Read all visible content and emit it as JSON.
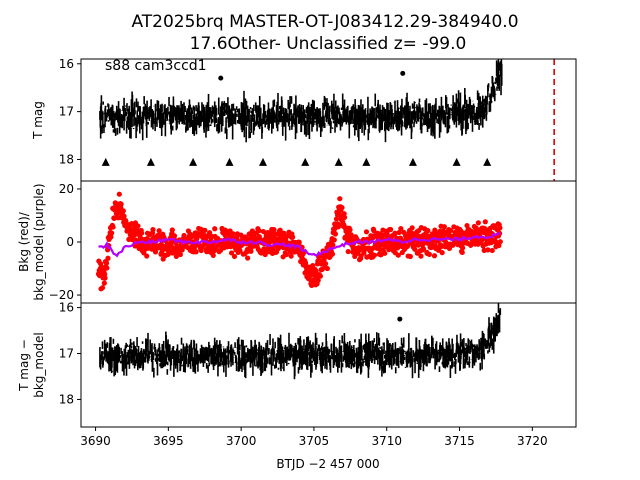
{
  "chart_data": [
    {
      "type": "scatter",
      "title": "AT2025brq  MASTER-OT-J083412.29-384940.0",
      "subtitle": "17.6Other- Unclassified z= -99.0",
      "annotation": "s88 cam3ccd1",
      "ylabel": "T mag",
      "ylim": [
        18.45,
        15.9
      ],
      "yticks": [
        16,
        17,
        18
      ],
      "inverted_y": true,
      "xlim": [
        3689,
        3723
      ],
      "marker_color": "#000000",
      "series": [
        {
          "x": [
            3690.3,
            3690.8,
            3691.3,
            3691.8,
            3692.3,
            3692.8,
            3693.3,
            3693.8,
            3694.3,
            3694.8,
            3695.3,
            3695.8,
            3696.3,
            3696.8,
            3697.3,
            3697.8,
            3698.3,
            3698.8,
            3699.3,
            3699.8,
            3700.3,
            3700.8,
            3701.3,
            3701.8,
            3702.3,
            3702.8,
            3703.3,
            3703.8,
            3704.3,
            3704.8,
            3705.3,
            3705.8,
            3706.3,
            3706.8,
            3707.3,
            3707.8,
            3708.3,
            3708.8,
            3709.3,
            3709.8,
            3710.3,
            3710.8,
            3711.3,
            3711.8,
            3712.3,
            3712.8,
            3713.3,
            3713.8,
            3714.3,
            3714.8,
            3715.3,
            3715.8,
            3716.3,
            3716.8,
            3717.1,
            3717.3,
            3717.5,
            3717.7,
            3717.9
          ],
          "y": [
            17.15,
            17.1,
            17.15,
            17.1,
            17.1,
            17.1,
            17.1,
            17.1,
            17.1,
            17.1,
            17.1,
            17.1,
            17.1,
            17.1,
            17.1,
            17.1,
            17.1,
            17.1,
            17.1,
            17.1,
            17.1,
            17.1,
            17.1,
            17.1,
            17.1,
            17.1,
            17.1,
            17.1,
            17.1,
            17.1,
            17.1,
            17.1,
            17.1,
            17.1,
            17.1,
            17.1,
            17.1,
            17.1,
            17.1,
            17.1,
            17.1,
            17.1,
            17.1,
            17.1,
            17.1,
            17.1,
            17.1,
            17.1,
            17.1,
            17.05,
            17.05,
            17.0,
            17.0,
            16.9,
            16.75,
            16.6,
            16.45,
            16.3,
            16.15
          ],
          "spread": 0.55
        }
      ],
      "outliers": [
        {
          "x": 3711.1,
          "y": 16.2
        },
        {
          "x": 3698.6,
          "y": 16.3
        }
      ],
      "upper_limits_x": [
        3690.7,
        3693.8,
        3696.7,
        3699.2,
        3701.5,
        3704.4,
        3706.7,
        3708.6,
        3711.8,
        3714.8,
        3716.9
      ],
      "upper_limits_y": 18.05,
      "vline": {
        "x": 3721.5,
        "color": "#e00000",
        "style": "dashed"
      }
    },
    {
      "type": "scatter",
      "ylabel": "Bkg (red)/\nbkg_model (purple)",
      "ylim": [
        -23,
        23
      ],
      "yticks": [
        -20,
        0,
        20
      ],
      "xlim": [
        3689,
        3723
      ],
      "series": [
        {
          "name": "Bkg",
          "color": "#ff0000",
          "x": [
            3690.2,
            3690.4,
            3690.6,
            3690.8,
            3691.0,
            3691.3,
            3691.6,
            3691.9,
            3692.2,
            3692.6,
            3693.0,
            3693.5,
            3694.0,
            3695.0,
            3696.0,
            3697.0,
            3698.0,
            3699.0,
            3700.0,
            3701.0,
            3702.0,
            3703.0,
            3703.5,
            3704.0,
            3704.3,
            3704.6,
            3704.9,
            3705.2,
            3705.5,
            3705.8,
            3706.1,
            3706.4,
            3706.8,
            3707.3,
            3708.0,
            3709.0,
            3710.0,
            3711.0,
            3712.0,
            3713.0,
            3714.0,
            3715.0,
            3716.0,
            3717.0,
            3717.8
          ],
          "y": [
            -10,
            -14,
            -12,
            -6,
            2,
            12,
            14,
            10,
            6,
            3,
            1,
            0,
            0,
            -1,
            0,
            1,
            0,
            0,
            -1,
            0,
            0,
            0,
            -1,
            -2,
            -6,
            -12,
            -14,
            -12,
            -8,
            -5,
            -4,
            4,
            12,
            2,
            -2,
            -1,
            0,
            0,
            0,
            0,
            1,
            1,
            2,
            2,
            3
          ],
          "spread": 6
        },
        {
          "name": "bkg_model",
          "color": "#b400ff",
          "x": [
            3690.2,
            3690.5,
            3690.8,
            3691.1,
            3691.4,
            3691.7,
            3692.0,
            3692.5,
            3693.0,
            3694.0,
            3695.0,
            3696.0,
            3697.0,
            3698.0,
            3699.0,
            3700.0,
            3701.0,
            3702.0,
            3703.0,
            3704.0,
            3704.5,
            3705.0,
            3705.5,
            3706.0,
            3706.5,
            3707.0,
            3708.0,
            3709.0,
            3710.0,
            3711.0,
            3712.0,
            3713.0,
            3714.0,
            3715.0,
            3716.0,
            3717.0,
            3717.8
          ],
          "y": [
            -2,
            -2,
            -1,
            -3,
            -5,
            -4,
            -2,
            -1,
            0,
            0,
            1,
            0,
            0,
            0,
            1,
            0,
            0,
            -1,
            -1,
            -2,
            -4,
            -5,
            -4,
            -3,
            -2,
            -1,
            0,
            0,
            1,
            0,
            1,
            1,
            1,
            1,
            2,
            2,
            3
          ]
        }
      ]
    },
    {
      "type": "scatter",
      "xlabel": "BTJD −2 457 000",
      "ylabel": "T mag −\nbkg_model",
      "ylim": [
        18.6,
        15.9
      ],
      "yticks": [
        16,
        17,
        18
      ],
      "inverted_y": true,
      "xlim": [
        3689,
        3723
      ],
      "xticks": [
        3690,
        3695,
        3700,
        3705,
        3710,
        3715,
        3720
      ],
      "marker_color": "#000000",
      "series": [
        {
          "x": [
            3690.3,
            3691.0,
            3692.0,
            3693.0,
            3694.0,
            3695.0,
            3696.0,
            3697.0,
            3698.0,
            3699.0,
            3700.0,
            3701.0,
            3702.0,
            3703.0,
            3704.0,
            3705.0,
            3706.0,
            3707.0,
            3708.0,
            3709.0,
            3710.0,
            3711.0,
            3712.0,
            3713.0,
            3714.0,
            3715.0,
            3716.0,
            3716.8,
            3717.2,
            3717.5,
            3717.8
          ],
          "y": [
            17.1,
            17.1,
            17.05,
            17.05,
            17.05,
            17.05,
            17.05,
            17.05,
            17.05,
            17.05,
            17.05,
            17.05,
            17.05,
            17.05,
            17.05,
            17.05,
            17.05,
            17.05,
            17.05,
            17.05,
            17.05,
            17.05,
            17.05,
            17.05,
            17.05,
            17.0,
            17.0,
            16.85,
            16.6,
            16.4,
            16.15
          ],
          "spread": 0.55
        }
      ],
      "outliers": [
        {
          "x": 3710.9,
          "y": 16.25
        }
      ]
    }
  ]
}
